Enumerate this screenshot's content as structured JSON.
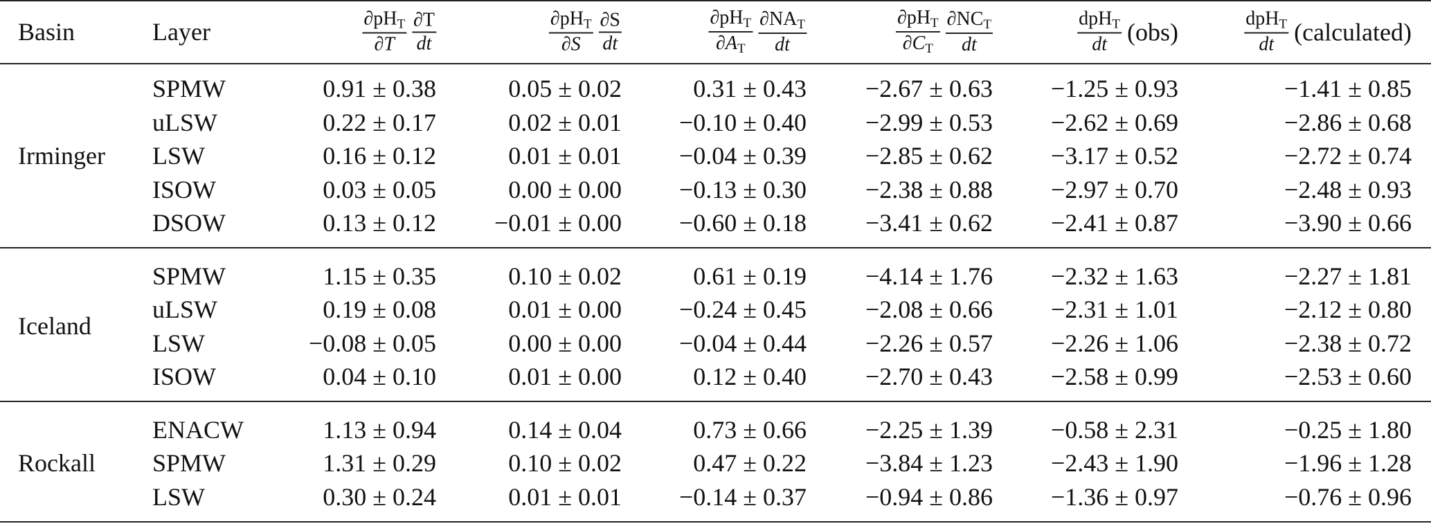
{
  "table": {
    "header": [
      {
        "text": "Basin"
      },
      {
        "text": "Layer"
      },
      {
        "fractions": [
          {
            "num": "∂pH",
            "num_sub": "T",
            "den": "∂T"
          },
          {
            "num": "∂T",
            "den": "dt"
          }
        ]
      },
      {
        "fractions": [
          {
            "num": "∂pH",
            "num_sub": "T",
            "den": "∂S"
          },
          {
            "num": "∂S",
            "den": "dt"
          }
        ]
      },
      {
        "fractions": [
          {
            "num": "∂pH",
            "num_sub": "T",
            "den": "∂A",
            "den_sub": "T"
          },
          {
            "num": "∂NA",
            "num_sub": "T",
            "den": "dt"
          }
        ]
      },
      {
        "fractions": [
          {
            "num": "∂pH",
            "num_sub": "T",
            "den": "∂C",
            "den_sub": "T"
          },
          {
            "num": "∂NC",
            "num_sub": "T",
            "den": "dt"
          }
        ]
      },
      {
        "fractions": [
          {
            "num": "dpH",
            "num_sub": "T",
            "den": "dt"
          }
        ],
        "suffix": "(obs)"
      },
      {
        "fractions": [
          {
            "num": "dpH",
            "num_sub": "T",
            "den": "dt"
          }
        ],
        "suffix": "(calculated)"
      }
    ],
    "groups": [
      {
        "basin": "Irminger",
        "rows": [
          [
            "SPMW",
            "0.91 ± 0.38",
            "0.05 ± 0.02",
            "0.31 ± 0.43",
            "−2.67 ± 0.63",
            "−1.25 ± 0.93",
            "−1.41 ± 0.85"
          ],
          [
            "uLSW",
            "0.22 ± 0.17",
            "0.02 ± 0.01",
            "−0.10 ± 0.40",
            "−2.99 ± 0.53",
            "−2.62 ± 0.69",
            "−2.86 ± 0.68"
          ],
          [
            "LSW",
            "0.16 ± 0.12",
            "0.01 ± 0.01",
            "−0.04 ± 0.39",
            "−2.85 ± 0.62",
            "−3.17 ± 0.52",
            "−2.72 ± 0.74"
          ],
          [
            "ISOW",
            "0.03 ± 0.05",
            "0.00 ± 0.00",
            "−0.13 ± 0.30",
            "−2.38 ± 0.88",
            "−2.97 ± 0.70",
            "−2.48 ± 0.93"
          ],
          [
            "DSOW",
            "0.13 ± 0.12",
            "−0.01 ± 0.00",
            "−0.60 ± 0.18",
            "−3.41 ± 0.62",
            "−2.41 ± 0.87",
            "−3.90 ± 0.66"
          ]
        ]
      },
      {
        "basin": "Iceland",
        "rows": [
          [
            "SPMW",
            "1.15 ± 0.35",
            "0.10 ± 0.02",
            "0.61 ± 0.19",
            "−4.14 ± 1.76",
            "−2.32 ± 1.63",
            "−2.27 ± 1.81"
          ],
          [
            "uLSW",
            "0.19 ± 0.08",
            "0.01 ± 0.00",
            "−0.24 ± 0.45",
            "−2.08 ± 0.66",
            "−2.31 ± 1.01",
            "−2.12 ± 0.80"
          ],
          [
            "LSW",
            "−0.08 ± 0.05",
            "0.00 ± 0.00",
            "−0.04 ± 0.44",
            "−2.26 ± 0.57",
            "−2.26 ± 1.06",
            "−2.38 ± 0.72"
          ],
          [
            "ISOW",
            "0.04 ± 0.10",
            "0.01 ± 0.00",
            "0.12 ± 0.40",
            "−2.70 ± 0.43",
            "−2.58 ± 0.99",
            "−2.53 ± 0.60"
          ]
        ]
      },
      {
        "basin": "Rockall",
        "rows": [
          [
            "ENACW",
            "1.13 ± 0.94",
            "0.14 ± 0.04",
            "0.73 ± 0.66",
            "−2.25 ± 1.39",
            "−0.58 ± 2.31",
            "−0.25 ± 1.80"
          ],
          [
            "SPMW",
            "1.31 ± 0.29",
            "0.10 ± 0.02",
            "0.47 ± 0.22",
            "−3.84 ± 1.23",
            "−2.43 ± 1.90",
            "−1.96 ± 1.28"
          ],
          [
            "LSW",
            "0.30 ± 0.24",
            "0.01 ± 0.01",
            "−0.14 ± 0.37",
            "−0.94 ± 0.86",
            "−1.36 ± 0.97",
            "−0.76 ± 0.96"
          ]
        ]
      }
    ]
  }
}
